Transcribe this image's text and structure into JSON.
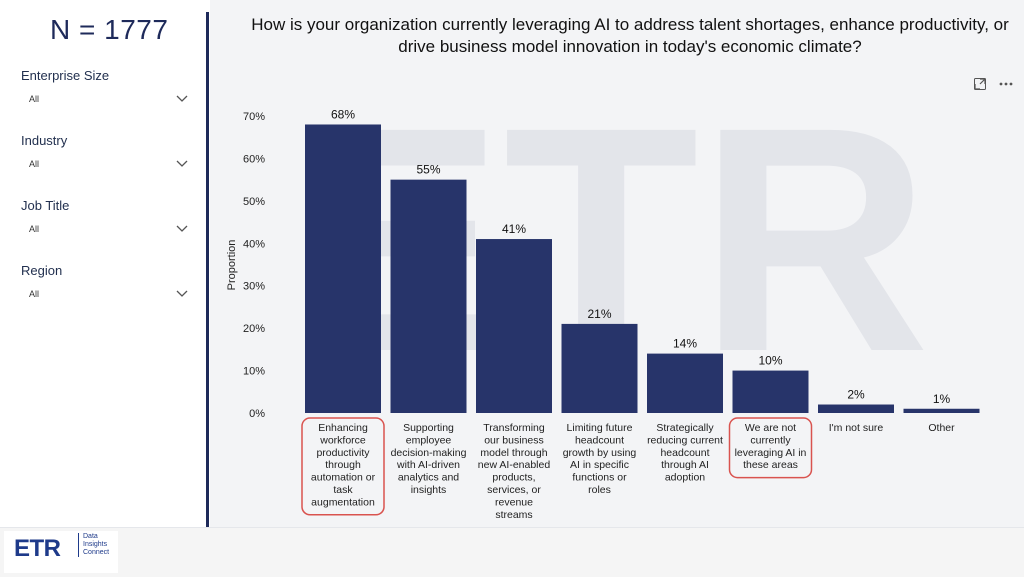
{
  "sidebar": {
    "n_label": "N = 1777",
    "filters": [
      {
        "label": "Enterprise Size",
        "value": "All"
      },
      {
        "label": "Industry",
        "value": "All"
      },
      {
        "label": "Job Title",
        "value": "All"
      },
      {
        "label": "Region",
        "value": "All"
      }
    ]
  },
  "header": {
    "question": "How is your organization currently leveraging AI to address talent shortages, enhance productivity, or drive business model innovation in today's economic climate?"
  },
  "toolbar": {
    "icons": [
      "expand-icon",
      "more-options-icon"
    ]
  },
  "branding": {
    "logo": "ETR",
    "sub_lines": [
      "Data",
      "Insights",
      "Connect"
    ]
  },
  "colors": {
    "bar": "#27346a",
    "highlight": "#d9534f",
    "accent": "#1e2a5a"
  },
  "chart_data": {
    "type": "bar",
    "ylabel": "Proportion",
    "ylim": [
      0,
      70
    ],
    "yticks": [
      "0%",
      "10%",
      "20%",
      "30%",
      "40%",
      "50%",
      "60%",
      "70%"
    ],
    "categories": [
      "Enhancing workforce productivity through automation or task augmentation",
      "Supporting employee decision-making with AI-driven analytics and insights",
      "Transforming our business model through new AI-enabled products, services, or revenue streams",
      "Limiting future headcount growth by using AI in specific functions or roles",
      "Strategically reducing current headcount through AI adoption",
      "We are not currently leveraging AI in these areas",
      "I'm not sure",
      "Other"
    ],
    "category_lines": [
      [
        "Enhancing",
        "workforce",
        "productivity",
        "through",
        "automation or",
        "task",
        "augmentation"
      ],
      [
        "Supporting",
        "employee",
        "decision-making",
        "with AI-driven",
        "analytics and",
        "insights"
      ],
      [
        "Transforming",
        "our business",
        "model through",
        "new AI-enabled",
        "products,",
        "services, or",
        "revenue",
        "streams"
      ],
      [
        "Limiting future",
        "headcount",
        "growth by using",
        "AI in specific",
        "functions or",
        "roles"
      ],
      [
        "Strategically",
        "reducing current",
        "headcount",
        "through AI",
        "adoption"
      ],
      [
        "We are not",
        "currently",
        "leveraging AI in",
        "these areas"
      ],
      [
        "I'm not sure"
      ],
      [
        "Other"
      ]
    ],
    "values": [
      68,
      55,
      41,
      21,
      14,
      10,
      2,
      1
    ],
    "value_labels": [
      "68%",
      "55%",
      "41%",
      "21%",
      "14%",
      "10%",
      "2%",
      "1%"
    ],
    "highlighted": [
      0,
      5
    ]
  }
}
